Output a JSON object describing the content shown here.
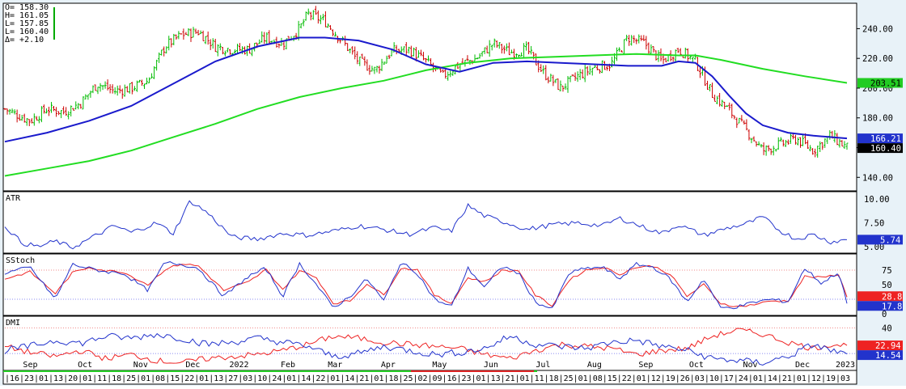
{
  "chart_data": {
    "type": "candlestick",
    "ohlc_box": {
      "open": "O= 158.30",
      "high": "H= 161.05",
      "low": "L= 157.85",
      "last": "L= 160.40",
      "change": "Δ=  +2.10"
    },
    "x_axis": {
      "months": [
        {
          "label": "Sep",
          "t": 0.035
        },
        {
          "label": "Oct",
          "t": 0.1
        },
        {
          "label": "Nov",
          "t": 0.166
        },
        {
          "label": "Dec",
          "t": 0.228
        },
        {
          "label": "2022",
          "t": 0.28
        },
        {
          "label": "Feb",
          "t": 0.341
        },
        {
          "label": "Mar",
          "t": 0.397
        },
        {
          "label": "Apr",
          "t": 0.46
        },
        {
          "label": "May",
          "t": 0.521
        },
        {
          "label": "Jun",
          "t": 0.582
        },
        {
          "label": "Jul",
          "t": 0.644
        },
        {
          "label": "Aug",
          "t": 0.705
        },
        {
          "label": "Sep",
          "t": 0.766
        },
        {
          "label": "Oct",
          "t": 0.826
        },
        {
          "label": "Nov",
          "t": 0.89
        },
        {
          "label": "Dec",
          "t": 0.952
        },
        {
          "label": "2023",
          "t": 1.0
        }
      ],
      "days": [
        "16",
        "23",
        "01",
        "13",
        "20",
        "01",
        "11",
        "18",
        "25",
        "01",
        "08",
        "15",
        "22",
        "01",
        "13",
        "27",
        "03",
        "10",
        "24",
        "01",
        "14",
        "22",
        "01",
        "14",
        "21",
        "01",
        "18",
        "25",
        "02",
        "09",
        "16",
        "23",
        "01",
        "13",
        "21",
        "01",
        "11",
        "18",
        "25",
        "01",
        "08",
        "15",
        "22",
        "01",
        "12",
        "19",
        "26",
        "03",
        "10",
        "17",
        "24",
        "01",
        "14",
        "21",
        "01",
        "12",
        "19",
        "03"
      ]
    },
    "price_panel": {
      "y_ticks": [
        140,
        160,
        180,
        200,
        220,
        240
      ],
      "ylim": [
        132,
        256
      ],
      "last_price": 160.4,
      "ma_labels": [
        {
          "value": 203.51,
          "color": "#22cc22",
          "text": "203.51"
        },
        {
          "value": 166.21,
          "color": "#2233cc",
          "text": "166.21"
        },
        {
          "value": 160.4,
          "color": "#000000",
          "text": "160.40"
        }
      ],
      "close_path": [
        [
          0,
          186
        ],
        [
          0.03,
          178
        ],
        [
          0.05,
          186
        ],
        [
          0.07,
          184
        ],
        [
          0.09,
          190
        ],
        [
          0.11,
          203
        ],
        [
          0.13,
          198
        ],
        [
          0.15,
          200
        ],
        [
          0.17,
          205
        ],
        [
          0.19,
          228
        ],
        [
          0.21,
          236
        ],
        [
          0.23,
          238
        ],
        [
          0.25,
          228
        ],
        [
          0.27,
          226
        ],
        [
          0.29,
          226
        ],
        [
          0.31,
          234
        ],
        [
          0.33,
          230
        ],
        [
          0.35,
          240
        ],
        [
          0.36,
          250
        ],
        [
          0.38,
          245
        ],
        [
          0.4,
          232
        ],
        [
          0.42,
          218
        ],
        [
          0.44,
          212
        ],
        [
          0.46,
          225
        ],
        [
          0.48,
          226
        ],
        [
          0.5,
          218
        ],
        [
          0.52,
          208
        ],
        [
          0.54,
          216
        ],
        [
          0.56,
          220
        ],
        [
          0.58,
          230
        ],
        [
          0.6,
          224
        ],
        [
          0.62,
          226
        ],
        [
          0.64,
          210
        ],
        [
          0.66,
          200
        ],
        [
          0.68,
          208
        ],
        [
          0.7,
          214
        ],
        [
          0.72,
          216
        ],
        [
          0.74,
          234
        ],
        [
          0.76,
          230
        ],
        [
          0.78,
          218
        ],
        [
          0.8,
          226
        ],
        [
          0.82,
          218
        ],
        [
          0.84,
          196
        ],
        [
          0.86,
          185
        ],
        [
          0.88,
          172
        ],
        [
          0.9,
          158
        ],
        [
          0.92,
          162
        ],
        [
          0.94,
          166
        ],
        [
          0.96,
          158
        ],
        [
          0.98,
          168
        ],
        [
          1.0,
          160
        ]
      ],
      "sma_50": [
        [
          0,
          164
        ],
        [
          0.05,
          170
        ],
        [
          0.1,
          178
        ],
        [
          0.15,
          188
        ],
        [
          0.2,
          203
        ],
        [
          0.25,
          218
        ],
        [
          0.3,
          228
        ],
        [
          0.35,
          234
        ],
        [
          0.38,
          234
        ],
        [
          0.42,
          232
        ],
        [
          0.46,
          226
        ],
        [
          0.5,
          216
        ],
        [
          0.54,
          211
        ],
        [
          0.58,
          217
        ],
        [
          0.62,
          218
        ],
        [
          0.66,
          217
        ],
        [
          0.7,
          216
        ],
        [
          0.74,
          215
        ],
        [
          0.78,
          215
        ],
        [
          0.8,
          218
        ],
        [
          0.82,
          217
        ],
        [
          0.84,
          208
        ],
        [
          0.86,
          195
        ],
        [
          0.88,
          183
        ],
        [
          0.9,
          175
        ],
        [
          0.93,
          170
        ],
        [
          0.96,
          168
        ],
        [
          1.0,
          166.21
        ]
      ],
      "sma_200": [
        [
          0,
          141
        ],
        [
          0.05,
          146
        ],
        [
          0.1,
          151
        ],
        [
          0.15,
          158
        ],
        [
          0.2,
          167
        ],
        [
          0.25,
          176
        ],
        [
          0.3,
          186
        ],
        [
          0.35,
          194
        ],
        [
          0.4,
          200
        ],
        [
          0.45,
          205
        ],
        [
          0.5,
          212
        ],
        [
          0.55,
          217
        ],
        [
          0.6,
          220
        ],
        [
          0.65,
          221
        ],
        [
          0.7,
          222
        ],
        [
          0.75,
          223
        ],
        [
          0.8,
          222
        ],
        [
          0.82,
          222
        ],
        [
          0.85,
          219
        ],
        [
          0.9,
          213
        ],
        [
          0.95,
          208
        ],
        [
          1.0,
          203.51
        ]
      ]
    },
    "atr_panel": {
      "title": "ATR",
      "y_ticks": [
        5.0,
        7.5,
        10.0
      ],
      "ylim": [
        4.5,
        10.6
      ],
      "last": 5.74,
      "series": [
        [
          0,
          7.2
        ],
        [
          0.02,
          5.4
        ],
        [
          0.04,
          5.0
        ],
        [
          0.06,
          5.6
        ],
        [
          0.08,
          4.9
        ],
        [
          0.1,
          5.8
        ],
        [
          0.13,
          7.2
        ],
        [
          0.15,
          6.5
        ],
        [
          0.18,
          7.5
        ],
        [
          0.2,
          6.4
        ],
        [
          0.22,
          9.8
        ],
        [
          0.24,
          8.6
        ],
        [
          0.27,
          6.0
        ],
        [
          0.3,
          5.8
        ],
        [
          0.33,
          6.4
        ],
        [
          0.36,
          6.2
        ],
        [
          0.4,
          6.8
        ],
        [
          0.42,
          7.2
        ],
        [
          0.45,
          6.8
        ],
        [
          0.48,
          6.3
        ],
        [
          0.51,
          7.0
        ],
        [
          0.53,
          6.6
        ],
        [
          0.55,
          9.3
        ],
        [
          0.57,
          8.2
        ],
        [
          0.6,
          7.4
        ],
        [
          0.62,
          6.8
        ],
        [
          0.65,
          7.3
        ],
        [
          0.68,
          7.5
        ],
        [
          0.71,
          7.2
        ],
        [
          0.73,
          8.0
        ],
        [
          0.76,
          7.0
        ],
        [
          0.78,
          6.4
        ],
        [
          0.8,
          7.3
        ],
        [
          0.83,
          6.2
        ],
        [
          0.86,
          7.0
        ],
        [
          0.88,
          7.4
        ],
        [
          0.9,
          8.1
        ],
        [
          0.92,
          6.7
        ],
        [
          0.94,
          5.8
        ],
        [
          0.96,
          6.3
        ],
        [
          0.98,
          5.5
        ],
        [
          1.0,
          5.74
        ]
      ]
    },
    "stoch_panel": {
      "title": "SStoch",
      "y_ticks": [
        0,
        25,
        50,
        75
      ],
      "ylim": [
        0,
        100
      ],
      "ref_lines": [
        75,
        25
      ],
      "last_k": 17.8,
      "last_d": 28.8,
      "k": [
        [
          0,
          70
        ],
        [
          0.03,
          80
        ],
        [
          0.06,
          25
        ],
        [
          0.08,
          85
        ],
        [
          0.1,
          78
        ],
        [
          0.12,
          72
        ],
        [
          0.14,
          70
        ],
        [
          0.17,
          40
        ],
        [
          0.19,
          88
        ],
        [
          0.21,
          85
        ],
        [
          0.23,
          78
        ],
        [
          0.26,
          30
        ],
        [
          0.29,
          65
        ],
        [
          0.31,
          78
        ],
        [
          0.33,
          30
        ],
        [
          0.35,
          86
        ],
        [
          0.37,
          50
        ],
        [
          0.39,
          10
        ],
        [
          0.41,
          30
        ],
        [
          0.43,
          60
        ],
        [
          0.45,
          22
        ],
        [
          0.47,
          88
        ],
        [
          0.49,
          70
        ],
        [
          0.51,
          25
        ],
        [
          0.53,
          12
        ],
        [
          0.55,
          78
        ],
        [
          0.57,
          45
        ],
        [
          0.59,
          82
        ],
        [
          0.61,
          70
        ],
        [
          0.63,
          20
        ],
        [
          0.65,
          8
        ],
        [
          0.67,
          70
        ],
        [
          0.69,
          78
        ],
        [
          0.71,
          80
        ],
        [
          0.73,
          60
        ],
        [
          0.75,
          85
        ],
        [
          0.77,
          80
        ],
        [
          0.79,
          60
        ],
        [
          0.81,
          20
        ],
        [
          0.83,
          60
        ],
        [
          0.85,
          10
        ],
        [
          0.87,
          12
        ],
        [
          0.89,
          20
        ],
        [
          0.91,
          25
        ],
        [
          0.93,
          20
        ],
        [
          0.95,
          78
        ],
        [
          0.97,
          52
        ],
        [
          0.99,
          72
        ],
        [
          1.0,
          17.8
        ]
      ],
      "d": [
        [
          0,
          60
        ],
        [
          0.03,
          72
        ],
        [
          0.06,
          35
        ],
        [
          0.08,
          70
        ],
        [
          0.1,
          80
        ],
        [
          0.12,
          74
        ],
        [
          0.14,
          72
        ],
        [
          0.17,
          50
        ],
        [
          0.19,
          76
        ],
        [
          0.21,
          86
        ],
        [
          0.23,
          82
        ],
        [
          0.26,
          40
        ],
        [
          0.29,
          55
        ],
        [
          0.31,
          76
        ],
        [
          0.33,
          42
        ],
        [
          0.35,
          74
        ],
        [
          0.37,
          62
        ],
        [
          0.39,
          18
        ],
        [
          0.41,
          22
        ],
        [
          0.43,
          52
        ],
        [
          0.45,
          32
        ],
        [
          0.47,
          78
        ],
        [
          0.49,
          76
        ],
        [
          0.51,
          32
        ],
        [
          0.53,
          18
        ],
        [
          0.55,
          62
        ],
        [
          0.57,
          55
        ],
        [
          0.59,
          74
        ],
        [
          0.61,
          74
        ],
        [
          0.63,
          32
        ],
        [
          0.65,
          14
        ],
        [
          0.67,
          58
        ],
        [
          0.69,
          75
        ],
        [
          0.71,
          80
        ],
        [
          0.73,
          68
        ],
        [
          0.75,
          80
        ],
        [
          0.77,
          82
        ],
        [
          0.79,
          68
        ],
        [
          0.81,
          30
        ],
        [
          0.83,
          50
        ],
        [
          0.85,
          18
        ],
        [
          0.87,
          12
        ],
        [
          0.89,
          16
        ],
        [
          0.91,
          22
        ],
        [
          0.93,
          22
        ],
        [
          0.95,
          64
        ],
        [
          0.97,
          62
        ],
        [
          0.99,
          68
        ],
        [
          1.0,
          28.8
        ]
      ]
    },
    "dmi_panel": {
      "title": "DMI",
      "y_ticks": [
        40
      ],
      "ylim": [
        0,
        50
      ],
      "ref_line": 40,
      "plus_di": 14.54,
      "minus_di": 22.94,
      "plus": [
        [
          0,
          18
        ],
        [
          0.03,
          22
        ],
        [
          0.06,
          28
        ],
        [
          0.09,
          25
        ],
        [
          0.12,
          32
        ],
        [
          0.15,
          30
        ],
        [
          0.18,
          34
        ],
        [
          0.21,
          30
        ],
        [
          0.24,
          24
        ],
        [
          0.27,
          26
        ],
        [
          0.3,
          30
        ],
        [
          0.33,
          26
        ],
        [
          0.36,
          22
        ],
        [
          0.39,
          12
        ],
        [
          0.42,
          15
        ],
        [
          0.45,
          22
        ],
        [
          0.48,
          18
        ],
        [
          0.51,
          14
        ],
        [
          0.54,
          16
        ],
        [
          0.57,
          20
        ],
        [
          0.6,
          32
        ],
        [
          0.63,
          24
        ],
        [
          0.66,
          22
        ],
        [
          0.69,
          20
        ],
        [
          0.72,
          26
        ],
        [
          0.75,
          28
        ],
        [
          0.78,
          22
        ],
        [
          0.81,
          18
        ],
        [
          0.84,
          10
        ],
        [
          0.87,
          8
        ],
        [
          0.9,
          6
        ],
        [
          0.93,
          12
        ],
        [
          0.96,
          24
        ],
        [
          0.98,
          18
        ],
        [
          1.0,
          14.54
        ]
      ],
      "minus": [
        [
          0,
          22
        ],
        [
          0.03,
          16
        ],
        [
          0.06,
          12
        ],
        [
          0.09,
          18
        ],
        [
          0.12,
          10
        ],
        [
          0.15,
          14
        ],
        [
          0.18,
          8
        ],
        [
          0.21,
          6
        ],
        [
          0.24,
          10
        ],
        [
          0.27,
          12
        ],
        [
          0.3,
          14
        ],
        [
          0.33,
          18
        ],
        [
          0.36,
          24
        ],
        [
          0.39,
          32
        ],
        [
          0.42,
          30
        ],
        [
          0.45,
          26
        ],
        [
          0.48,
          24
        ],
        [
          0.51,
          22
        ],
        [
          0.54,
          20
        ],
        [
          0.57,
          14
        ],
        [
          0.6,
          10
        ],
        [
          0.63,
          18
        ],
        [
          0.66,
          24
        ],
        [
          0.69,
          22
        ],
        [
          0.72,
          20
        ],
        [
          0.75,
          14
        ],
        [
          0.78,
          18
        ],
        [
          0.81,
          20
        ],
        [
          0.84,
          32
        ],
        [
          0.87,
          38
        ],
        [
          0.9,
          34
        ],
        [
          0.93,
          26
        ],
        [
          0.96,
          20
        ],
        [
          0.98,
          24
        ],
        [
          1.0,
          22.94
        ]
      ]
    },
    "colors": {
      "up_candle": "#00bb00",
      "down_candle": "#cc0000",
      "sma_50": "#1a1acc",
      "sma_200": "#22dd22",
      "atr": "#2233cc",
      "stoch_k": "#2233cc",
      "stoch_d": "#ee2222",
      "dmi_plus": "#2233cc",
      "dmi_minus": "#ee2222",
      "grid": "#000000",
      "panel_bg": "#ffffff",
      "frame_bg": "#e8f2f8"
    }
  }
}
